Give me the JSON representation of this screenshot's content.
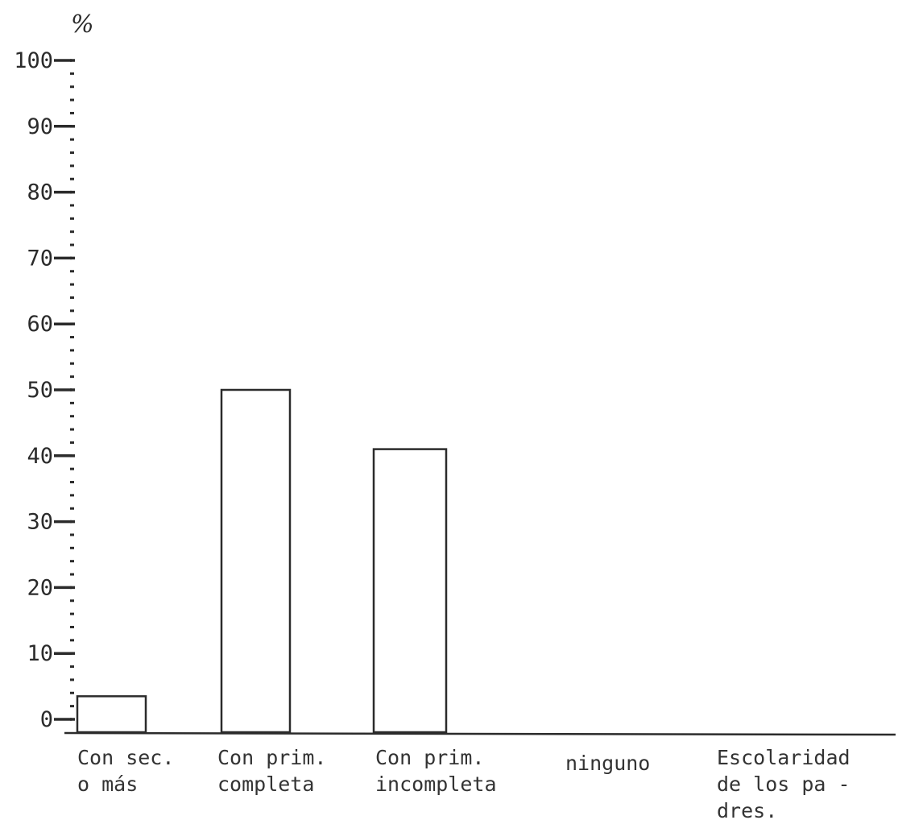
{
  "chart_data": {
    "type": "bar",
    "unit_label": "%",
    "categories": [
      [
        "Con sec.",
        "o más"
      ],
      [
        "Con prim.",
        "completa"
      ],
      [
        "Con prim.",
        "incompleta"
      ],
      [
        "ninguno"
      ]
    ],
    "values": [
      3.5,
      50,
      41,
      0
    ],
    "x_axis_title": [
      "Escolaridad",
      "de los pa -",
      "dres."
    ],
    "ylim": [
      0,
      100
    ],
    "y_ticks": [
      0,
      10,
      20,
      30,
      40,
      50,
      60,
      70,
      80,
      90,
      100
    ],
    "y_tick_labels": [
      "0",
      "10",
      "20",
      "30",
      "40",
      "50",
      "60",
      "70",
      "80",
      "90",
      "100"
    ],
    "minor_ticks_per_major": 5,
    "bar_fill": "#ffffff",
    "ink_color": "#2b2b2b",
    "grid": false
  }
}
